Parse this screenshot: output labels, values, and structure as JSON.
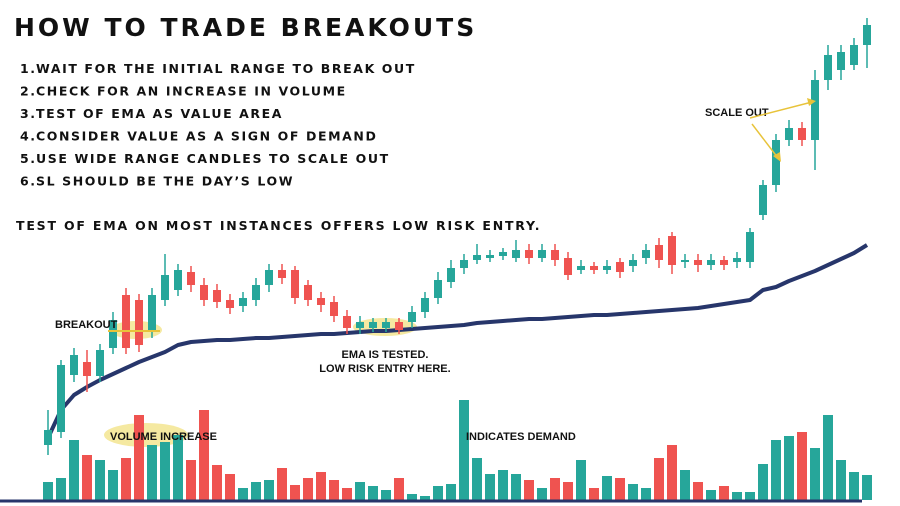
{
  "title": "HOW TO TRADE BREAKOUTS",
  "steps": [
    {
      "number": "1.",
      "text": "WAIT FOR THE INITIAL RANGE TO BREAK OUT"
    },
    {
      "number": "2.",
      "text": "CHECK FOR AN INCREASE IN VOLUME"
    },
    {
      "number": "3.",
      "text": "TEST OF EMA AS VALUE AREA"
    },
    {
      "number": "4.",
      "text": "CONSIDER VALUE AS A SIGN OF DEMAND"
    },
    {
      "number": "5.",
      "text": "USE WIDE RANGE CANDLES TO SCALE OUT"
    },
    {
      "number": "6.",
      "text": "SL SHOULD BE THE DAY’S LOW"
    }
  ],
  "note": "TEST OF EMA ON MOST INSTANCES OFFERS LOW RISK ENTRY.",
  "annotations": {
    "breakout": "BREAKOUT",
    "ema_tested": [
      "EMA IS TESTED.",
      "LOW RISK ENTRY HERE."
    ],
    "volume_increase": "VOLUME INCREASE",
    "indicates_demand": "INDICATES  DEMAND",
    "scale_out": "SCALE OUT"
  },
  "chart_data": {
    "type": "candlestick",
    "up_color": "#26a69a",
    "down_color": "#ef5350",
    "ema_color": "#27366b",
    "ylim": [
      0,
      500
    ],
    "volume_ylim": [
      0,
      500
    ],
    "open": [
      55,
      68,
      125,
      138,
      124,
      152,
      205,
      200,
      170,
      200,
      210,
      228,
      215,
      210,
      200,
      194,
      200,
      215,
      230,
      230,
      215,
      202,
      198,
      184,
      172,
      172,
      172,
      178,
      178,
      188,
      202,
      218,
      232,
      240,
      242,
      244,
      242,
      250,
      242,
      250,
      242,
      230,
      234,
      230,
      238,
      234,
      242,
      255,
      264,
      238,
      240,
      235,
      240,
      238,
      238,
      285,
      315,
      360,
      372,
      360,
      420,
      430,
      435,
      455
    ],
    "high": [
      90,
      140,
      152,
      150,
      156,
      188,
      212,
      206,
      212,
      246,
      236,
      234,
      222,
      216,
      206,
      208,
      222,
      236,
      236,
      234,
      220,
      208,
      204,
      190,
      184,
      182,
      182,
      182,
      194,
      208,
      228,
      240,
      246,
      256,
      250,
      252,
      260,
      256,
      256,
      256,
      248,
      240,
      238,
      240,
      242,
      246,
      256,
      262,
      268,
      246,
      246,
      246,
      244,
      248,
      272,
      320,
      366,
      380,
      378,
      430,
      455,
      455,
      462,
      482
    ],
    "low": [
      45,
      62,
      118,
      108,
      118,
      146,
      146,
      148,
      162,
      194,
      204,
      208,
      194,
      192,
      186,
      188,
      194,
      208,
      216,
      196,
      194,
      188,
      178,
      166,
      166,
      168,
      168,
      166,
      172,
      182,
      196,
      212,
      226,
      236,
      238,
      240,
      238,
      236,
      238,
      234,
      220,
      226,
      226,
      226,
      222,
      228,
      236,
      232,
      226,
      232,
      228,
      230,
      230,
      232,
      232,
      280,
      308,
      354,
      354,
      330,
      410,
      420,
      430,
      432
    ],
    "close": [
      70,
      135,
      145,
      124,
      150,
      180,
      152,
      155,
      205,
      225,
      230,
      215,
      200,
      198,
      192,
      202,
      215,
      230,
      222,
      202,
      200,
      195,
      184,
      172,
      178,
      178,
      178,
      170,
      188,
      202,
      220,
      232,
      240,
      245,
      245,
      248,
      250,
      242,
      250,
      240,
      225,
      234,
      230,
      234,
      228,
      240,
      250,
      240,
      235,
      240,
      235,
      240,
      235,
      242,
      268,
      315,
      360,
      372,
      360,
      420,
      445,
      448,
      455,
      475
    ],
    "volume": [
      18,
      22,
      60,
      45,
      40,
      30,
      42,
      85,
      55,
      58,
      65,
      40,
      90,
      35,
      26,
      12,
      18,
      20,
      32,
      15,
      22,
      28,
      20,
      12,
      18,
      14,
      10,
      22,
      6,
      4,
      14,
      16,
      100,
      42,
      26,
      30,
      26,
      20,
      12,
      22,
      18,
      40,
      12,
      24,
      22,
      16,
      12,
      42,
      55,
      30,
      18,
      10,
      14,
      8,
      8,
      36,
      60,
      64,
      68,
      52,
      85,
      40,
      28,
      25
    ],
    "ema": [
      62,
      90,
      105,
      113,
      120,
      126,
      132,
      138,
      143,
      148,
      155,
      158,
      159,
      160,
      160,
      161,
      162,
      162,
      163,
      164,
      165,
      166,
      166,
      167,
      168,
      169,
      169,
      170,
      171,
      172,
      173,
      174,
      175,
      177,
      178,
      179,
      180,
      181,
      181,
      182,
      183,
      184,
      185,
      185,
      186,
      187,
      188,
      189,
      190,
      191,
      192,
      194,
      196,
      198,
      200,
      210,
      213,
      219,
      224,
      229,
      235,
      241,
      247,
      255
    ]
  }
}
